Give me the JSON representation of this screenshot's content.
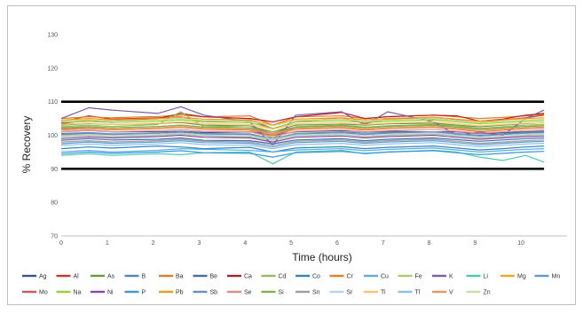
{
  "chart_data": {
    "type": "line",
    "title": "",
    "xlabel": "Time (hours)",
    "ylabel": "% Recovery",
    "xlim": [
      0,
      11
    ],
    "ylim": [
      70,
      130
    ],
    "xticks": [
      0,
      1,
      2,
      3,
      4,
      5,
      6,
      7,
      8,
      9,
      10
    ],
    "yticks": [
      70,
      80,
      90,
      100,
      110,
      120,
      130
    ],
    "xtick_labels": [
      "0",
      "1",
      "2",
      "3",
      "4",
      "5",
      "6",
      "7",
      "8",
      "9",
      "10"
    ],
    "ytick_labels": [
      "70",
      "80",
      "90",
      "100",
      "110",
      "120",
      "130"
    ],
    "grid": false,
    "legend_position": "bottom",
    "x": [
      0,
      0.6,
      1.1,
      2.1,
      2.6,
      3.1,
      4.1,
      4.6,
      5.1,
      6.1,
      6.6,
      7.1,
      8.1,
      8.6,
      9.1,
      9.6,
      10.1,
      10.5
    ],
    "limits": [
      {
        "value": 110,
        "color": "#000000"
      },
      {
        "value": 90,
        "color": "#000000"
      }
    ],
    "series": [
      {
        "name": "Ag",
        "color": "#2f5597",
        "values": [
          101,
          101.5,
          101,
          101,
          101.2,
          100.8,
          101,
          100,
          101,
          101.4,
          101,
          101.2,
          101,
          101,
          100.5,
          100.8,
          101,
          101.2
        ]
      },
      {
        "name": "Al",
        "color": "#c0392b",
        "values": [
          104,
          105.8,
          104.8,
          105.2,
          105.5,
          104,
          104.5,
          102,
          104,
          105.2,
          103.5,
          104.8,
          105,
          104.5,
          103.8,
          104.6,
          105.2,
          106
        ]
      },
      {
        "name": "As",
        "color": "#70963a",
        "values": [
          103,
          103.5,
          103.2,
          103.5,
          103.8,
          103,
          102.8,
          101,
          103,
          103.3,
          103,
          103.4,
          103.6,
          103,
          102.5,
          103,
          103.5,
          103.8
        ]
      },
      {
        "name": "B",
        "color": "#4a86c5",
        "values": [
          100.5,
          100.8,
          100.4,
          100.6,
          100.9,
          100.5,
          100.4,
          99,
          100.5,
          101,
          100.6,
          100.8,
          101,
          100.5,
          100,
          100.4,
          100.8,
          101
        ]
      },
      {
        "name": "Ba",
        "color": "#e07b28",
        "values": [
          105,
          105.5,
          105.2,
          105.6,
          106,
          105.5,
          105.8,
          103,
          105.5,
          105.8,
          105,
          105.6,
          106,
          105.5,
          105,
          105.3,
          105.8,
          106.2
        ]
      },
      {
        "name": "Be",
        "color": "#3a6fb0",
        "values": [
          98.5,
          99,
          98.6,
          98.8,
          99.2,
          98.5,
          98.4,
          97.5,
          98.6,
          99,
          98.4,
          98.8,
          99.2,
          98.7,
          98.2,
          98.6,
          99,
          99.2
        ]
      },
      {
        "name": "Ca",
        "color": "#b22222",
        "values": [
          103.5,
          104.5,
          104.2,
          105,
          106.5,
          105.5,
          105,
          104,
          105.5,
          106.8,
          105,
          105.5,
          106,
          105.8,
          104.2,
          104.8,
          106,
          106.5
        ]
      },
      {
        "name": "Cd",
        "color": "#8fbc5a",
        "values": [
          102.5,
          103,
          102.6,
          103.2,
          107,
          102.5,
          102.8,
          99,
          102.5,
          103,
          102.4,
          102.8,
          103.2,
          102.8,
          102,
          102.5,
          103,
          103.2
        ]
      },
      {
        "name": "Co",
        "color": "#2e86c1",
        "values": [
          96,
          96.5,
          96.2,
          96.8,
          96.5,
          96,
          96.4,
          95,
          96.2,
          96.6,
          96,
          96.4,
          96.8,
          96.2,
          95.6,
          96,
          96.5,
          96.8
        ]
      },
      {
        "name": "Cr",
        "color": "#e67e22",
        "values": [
          101.5,
          102,
          101.6,
          102,
          102.4,
          101.8,
          101.5,
          100,
          101.8,
          102.2,
          101.5,
          102,
          102.4,
          101.8,
          101,
          101.5,
          102,
          102.2
        ]
      },
      {
        "name": "Cu",
        "color": "#5dade2",
        "values": [
          95,
          95.5,
          95,
          95.5,
          96,
          95.8,
          95.5,
          95,
          95.6,
          96,
          95.4,
          95.8,
          96.2,
          95.6,
          95,
          95.4,
          95.8,
          96
        ]
      },
      {
        "name": "Fe",
        "color": "#a9cc6b",
        "values": [
          99.5,
          100,
          99.6,
          100,
          100.4,
          99.8,
          99.5,
          98.5,
          99.8,
          100.2,
          99.6,
          100,
          100.4,
          99.8,
          99.2,
          99.6,
          100,
          100.2
        ]
      },
      {
        "name": "K",
        "color": "#7d5ba6",
        "values": [
          105,
          108.2,
          107.5,
          106.5,
          108.5,
          106,
          104,
          97,
          106,
          107,
          103,
          107,
          104,
          100,
          101,
          100,
          105,
          107.5
        ]
      },
      {
        "name": "Li",
        "color": "#48c9b0",
        "values": [
          94,
          94.5,
          94,
          94.5,
          94.2,
          94.8,
          95,
          91.5,
          95,
          95.5,
          94.5,
          95,
          95.5,
          95,
          93.5,
          92.5,
          94,
          92
        ]
      },
      {
        "name": "Mg",
        "color": "#f5a623",
        "values": [
          100,
          100.5,
          100.2,
          100.6,
          101,
          100.4,
          100.2,
          99,
          100.4,
          100.8,
          100.2,
          100.6,
          101,
          100.4,
          99.8,
          100.2,
          100.6,
          100.8
        ]
      },
      {
        "name": "Mn",
        "color": "#5b9bd5",
        "values": [
          97.5,
          98,
          97.6,
          98,
          98.4,
          97.8,
          97.6,
          96.5,
          97.8,
          98.2,
          97.6,
          98,
          98.4,
          97.8,
          97.2,
          97.6,
          98,
          98.2
        ]
      },
      {
        "name": "Mo",
        "color": "#d35454",
        "values": [
          102,
          102.5,
          102.2,
          102.6,
          103,
          102.4,
          102.2,
          100.5,
          102.4,
          102.8,
          102.2,
          102.6,
          103,
          102.4,
          101.8,
          102.2,
          102.6,
          102.8
        ]
      },
      {
        "name": "Na",
        "color": "#9acd32",
        "values": [
          103.8,
          104.2,
          103.8,
          104.2,
          104.6,
          104,
          103.8,
          102,
          104,
          104.4,
          103.8,
          104.2,
          104.6,
          104,
          103.4,
          103.8,
          104.2,
          104.4
        ]
      },
      {
        "name": "Ni",
        "color": "#8e44ad",
        "values": [
          99,
          99.5,
          99.2,
          99.6,
          100,
          99.4,
          99.2,
          98,
          99.4,
          99.8,
          99.2,
          99.6,
          100,
          99.4,
          98.8,
          99.2,
          99.6,
          99.8
        ]
      },
      {
        "name": "P",
        "color": "#3498db",
        "values": [
          94.5,
          95,
          94.6,
          95,
          95.4,
          94.8,
          94.6,
          93.5,
          94.8,
          95.2,
          94.6,
          95,
          95.4,
          94.8,
          94.2,
          94.6,
          95,
          95.2
        ]
      },
      {
        "name": "Pb",
        "color": "#f39c12",
        "values": [
          104.5,
          105,
          104.6,
          105,
          105.4,
          104.8,
          104.6,
          103,
          104.8,
          105.2,
          104.6,
          105,
          105.4,
          104.8,
          104.2,
          104.6,
          105,
          105.2
        ]
      },
      {
        "name": "Sb",
        "color": "#6c8ebf",
        "values": [
          100.2,
          100.6,
          100.2,
          100.6,
          101,
          100.4,
          100.2,
          99,
          100.4,
          100.8,
          100.2,
          100.6,
          101,
          100.4,
          99.8,
          100.2,
          100.6,
          100.8
        ]
      },
      {
        "name": "Se",
        "color": "#e08a8a",
        "values": [
          101,
          101.4,
          101,
          101.4,
          101.8,
          101.2,
          101,
          99.5,
          101.2,
          101.6,
          101,
          101.4,
          101.8,
          101.2,
          100.6,
          101,
          101.4,
          101.6
        ]
      },
      {
        "name": "Si",
        "color": "#7cb342",
        "values": [
          102.2,
          102.6,
          102.2,
          102.6,
          103,
          102.4,
          102.2,
          101,
          102.4,
          102.8,
          102.2,
          102.6,
          103,
          102.4,
          101.8,
          102.2,
          102.6,
          102.8
        ]
      },
      {
        "name": "Sn",
        "color": "#9e9e9e",
        "values": [
          98,
          98.4,
          98,
          98.4,
          98.8,
          98.2,
          98,
          97,
          98.2,
          98.6,
          98,
          98.4,
          98.8,
          98.2,
          97.6,
          98,
          98.4,
          98.6
        ]
      },
      {
        "name": "Sr",
        "color": "#aed6f1",
        "values": [
          99.8,
          100.2,
          99.8,
          100.2,
          100.6,
          100,
          99.8,
          98.8,
          100,
          100.4,
          99.8,
          100.2,
          100.6,
          100,
          99.4,
          99.8,
          100.2,
          100.4
        ]
      },
      {
        "name": "Ti",
        "color": "#f8c471",
        "values": [
          103.2,
          103.6,
          103.2,
          103.6,
          104,
          103.4,
          103.2,
          101.8,
          103.4,
          103.8,
          103.2,
          103.6,
          104,
          103.4,
          102.8,
          103.2,
          103.6,
          103.8
        ]
      },
      {
        "name": "Tl",
        "color": "#85c1e9",
        "values": [
          97,
          97.4,
          97,
          97.4,
          97.8,
          97.2,
          97,
          96,
          97.2,
          97.6,
          97,
          97.4,
          97.8,
          97.2,
          96.6,
          97,
          97.4,
          97.6
        ]
      },
      {
        "name": "V",
        "color": "#e59866",
        "values": [
          101.8,
          102.2,
          101.8,
          102.2,
          102.6,
          102,
          101.8,
          100.4,
          102,
          102.4,
          101.8,
          102.2,
          102.6,
          102,
          101.4,
          101.8,
          102.2,
          102.4
        ]
      },
      {
        "name": "Zn",
        "color": "#c5e1a5",
        "values": [
          104.2,
          104.6,
          104.2,
          104.6,
          105,
          104.4,
          104.2,
          102.8,
          104.4,
          104.8,
          104.2,
          104.6,
          105,
          104.4,
          103.8,
          104.2,
          104.6,
          104.8
        ]
      }
    ]
  }
}
